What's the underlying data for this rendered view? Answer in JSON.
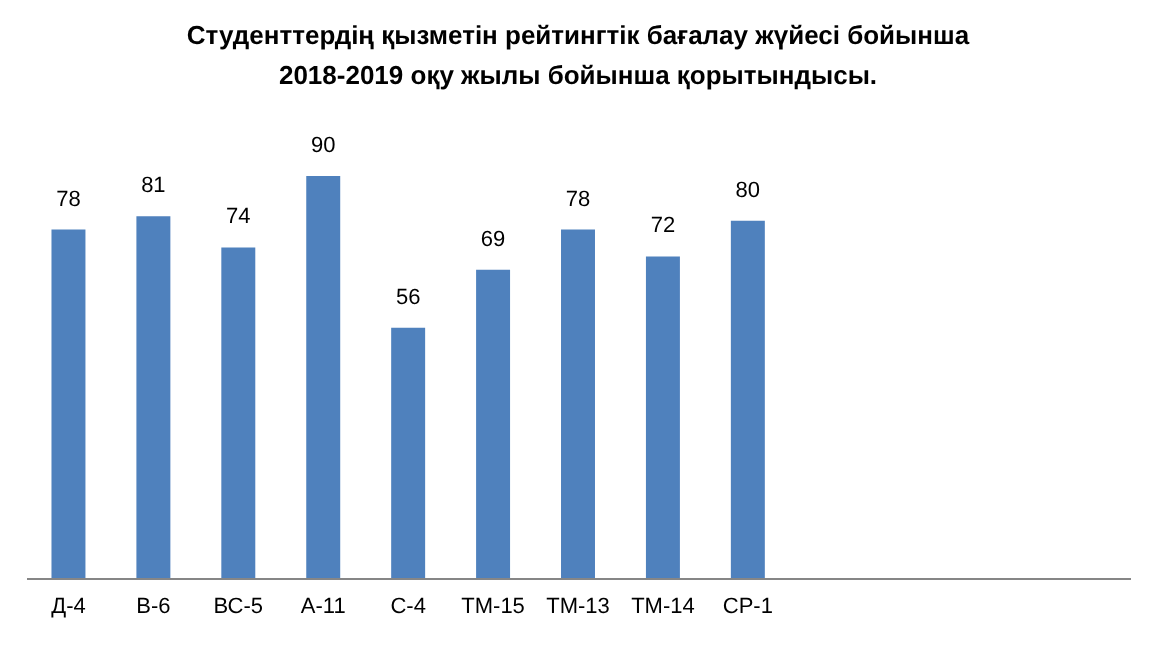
{
  "chart_data": {
    "type": "bar",
    "title": "Студенттердің қызметін рейтингтік бағалау жүйесі бойынша\n2018-2019 оқу жылы  бойынша қорытындысы.",
    "categories": [
      "Д-4",
      "В-6",
      "ВС-5",
      "А-11",
      "С-4",
      "ТМ-15",
      "ТМ-13",
      "ТМ-14",
      "СР-1",
      null,
      null,
      null,
      null
    ],
    "values": [
      78,
      81,
      74,
      90,
      56,
      69,
      78,
      72,
      80,
      null,
      null,
      null,
      null
    ],
    "color": "#4f81bd",
    "data_labels": true
  }
}
